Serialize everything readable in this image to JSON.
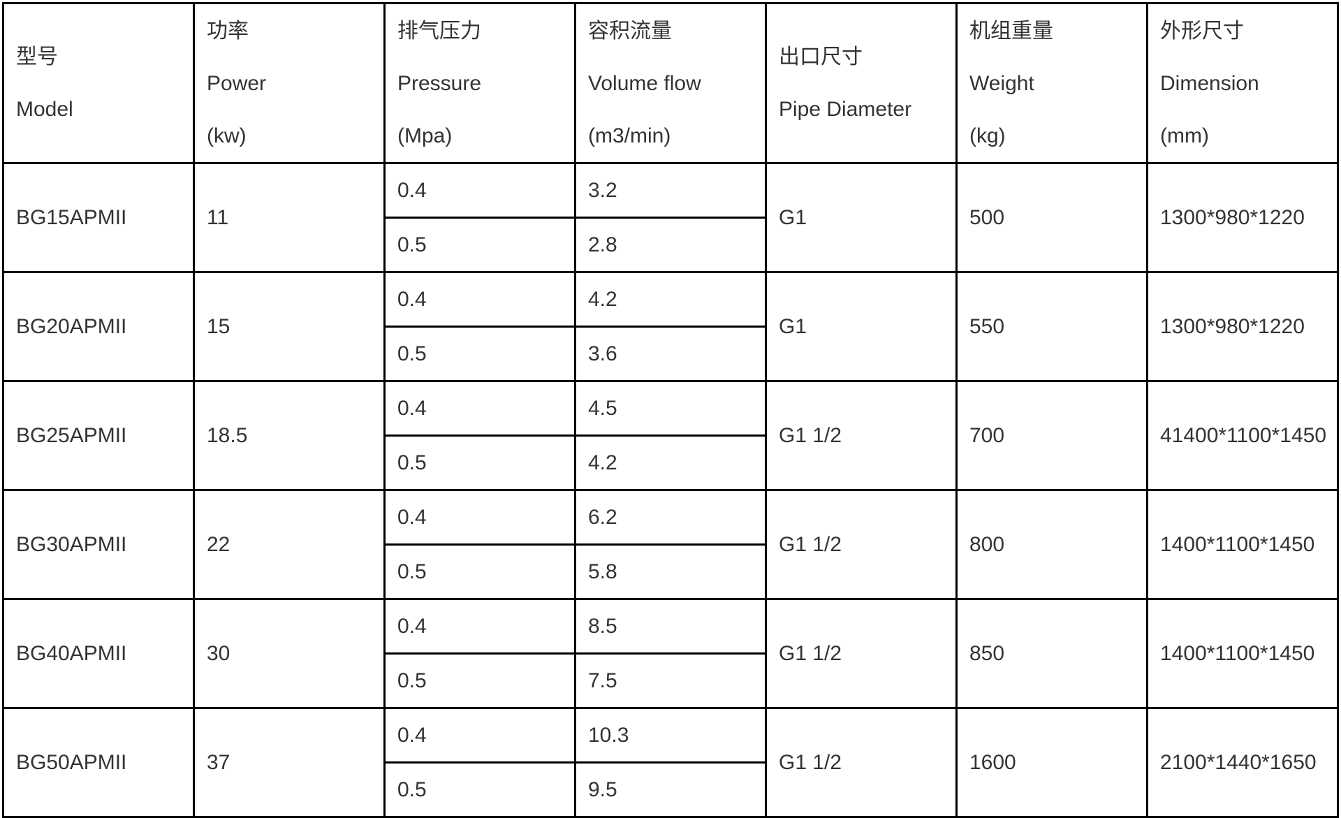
{
  "headers": [
    {
      "zh": "型号",
      "en": "Model",
      "unit": ""
    },
    {
      "zh": "功率",
      "en": "Power",
      "unit": "(kw)"
    },
    {
      "zh": "排气压力",
      "en": "Pressure",
      "unit": "(Mpa)"
    },
    {
      "zh": "容积流量",
      "en": "Volume flow",
      "unit": "(m3/min)"
    },
    {
      "zh": "出口尺寸",
      "en": "Pipe Diameter",
      "unit": ""
    },
    {
      "zh": "机组重量",
      "en": "Weight",
      "unit": "(kg)"
    },
    {
      "zh": "外形尺寸",
      "en": "Dimension",
      "unit": "(mm)"
    }
  ],
  "rows": [
    {
      "model": "BG15APMII",
      "power": "11",
      "pressure": [
        "0.4",
        "0.5"
      ],
      "flow": [
        "3.2",
        "2.8"
      ],
      "pipe": "G1",
      "weight": "500",
      "dimension": "1300*980*1220"
    },
    {
      "model": "BG20APMII",
      "power": "15",
      "pressure": [
        "0.4",
        "0.5"
      ],
      "flow": [
        "4.2",
        "3.6"
      ],
      "pipe": "G1",
      "weight": "550",
      "dimension": "1300*980*1220"
    },
    {
      "model": "BG25APMII",
      "power": "18.5",
      "pressure": [
        "0.4",
        "0.5"
      ],
      "flow": [
        "4.5",
        "4.2"
      ],
      "pipe": "G1 1/2",
      "weight": "700",
      "dimension": "41400*1100*1450"
    },
    {
      "model": "BG30APMII",
      "power": "22",
      "pressure": [
        "0.4",
        "0.5"
      ],
      "flow": [
        "6.2",
        "5.8"
      ],
      "pipe": "G1 1/2",
      "weight": "800",
      "dimension": "1400*1100*1450"
    },
    {
      "model": "BG40APMII",
      "power": "30",
      "pressure": [
        "0.4",
        "0.5"
      ],
      "flow": [
        "8.5",
        "7.5"
      ],
      "pipe": "G1 1/2",
      "weight": "850",
      "dimension": "1400*1100*1450"
    },
    {
      "model": "BG50APMII",
      "power": "37",
      "pressure": [
        "0.4",
        "0.5"
      ],
      "flow": [
        "10.3",
        "9.5"
      ],
      "pipe": "G1 1/2",
      "weight": "1600",
      "dimension": "2100*1440*1650"
    }
  ]
}
